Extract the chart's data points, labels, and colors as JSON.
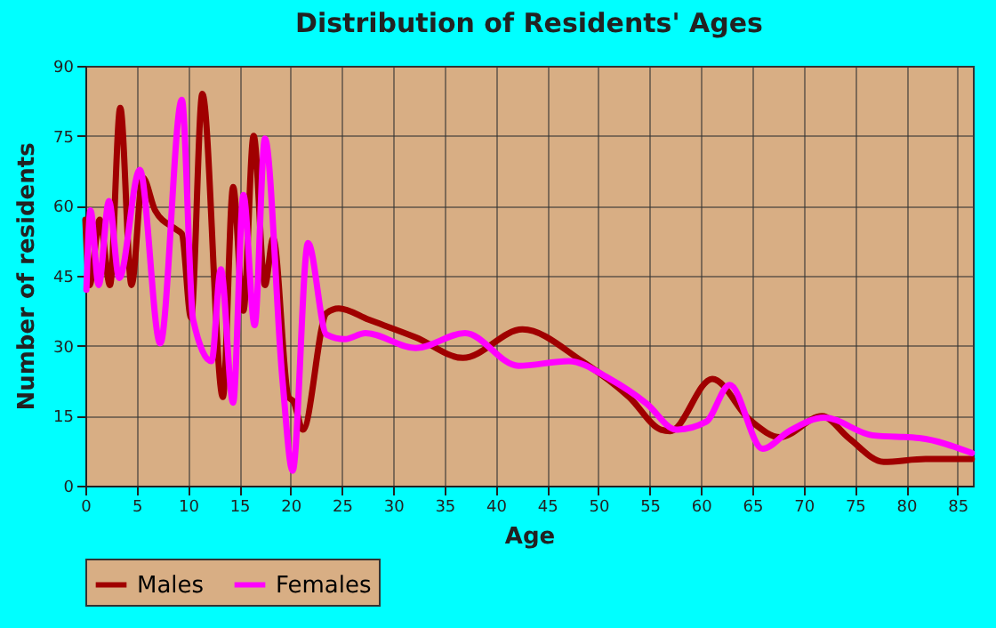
{
  "chart_data": {
    "type": "line",
    "title": "Distribution of Residents' Ages",
    "xlabel": "Age",
    "ylabel": "Number of residents",
    "xlim": [
      0,
      86.5
    ],
    "xticks": [
      0,
      5,
      10,
      15,
      20,
      25,
      30,
      35,
      40,
      45,
      50,
      55,
      60,
      65,
      70,
      75,
      80,
      85
    ],
    "ylim": [
      0,
      90
    ],
    "yticks": [
      0,
      15,
      30,
      45,
      60,
      75,
      90
    ],
    "grid": true,
    "legend": "bottom",
    "marker": "none",
    "line_style": "solid",
    "series": [
      {
        "name": "Males",
        "color": "#a00000",
        "x": [
          0,
          0.4,
          1.4,
          2.4,
          3.4,
          4.5,
          5.6,
          6.8,
          8.8,
          9.4,
          10.3,
          11.4,
          13.4,
          14.4,
          15.4,
          16.4,
          17.5,
          18.3,
          19.8,
          20.3,
          21.2,
          23.5,
          24.7,
          27.6,
          32.2,
          36.8,
          42.6,
          48.4,
          53,
          56.1,
          57,
          61.1,
          64.8,
          67.7,
          71.8,
          74.4,
          77.8,
          81.9,
          86.4
        ],
        "values": [
          57,
          43,
          57,
          43,
          81,
          43,
          66,
          59,
          55,
          54,
          36,
          84,
          19,
          64,
          37.5,
          75,
          43,
          53,
          19,
          18,
          12,
          37,
          38,
          35.6,
          31.8,
          27.4,
          33.5,
          26.7,
          19,
          12,
          11.7,
          22.9,
          14,
          10.4,
          14.9,
          10.2,
          5.1,
          5.7,
          5.7
        ]
      },
      {
        "name": "Females",
        "color": "#ff00ff",
        "x": [
          0.1,
          0.5,
          1.3,
          2.3,
          3.3,
          5.3,
          7.3,
          9.4,
          10.5,
          12.3,
          13.2,
          14.4,
          15.4,
          16.5,
          17.5,
          19.2,
          20.2,
          21.7,
          23.5,
          25.3,
          27.3,
          32.2,
          37,
          42.2,
          47.1,
          51.1,
          54.7,
          57.6,
          60.5,
          62.8,
          66,
          68.6,
          72,
          76.7,
          81.3,
          86.4
        ],
        "values": [
          42,
          59,
          43,
          61,
          44.5,
          67.7,
          30.5,
          82.7,
          35.6,
          26.7,
          46.4,
          17.8,
          62.3,
          34.4,
          74.4,
          22.9,
          3.2,
          52,
          32.4,
          31.4,
          32.7,
          29.5,
          32.7,
          25.7,
          26.7,
          22.9,
          17.6,
          12,
          13.7,
          21.6,
          7.9,
          11.7,
          14.6,
          10.8,
          10.2,
          7
        ]
      }
    ]
  }
}
